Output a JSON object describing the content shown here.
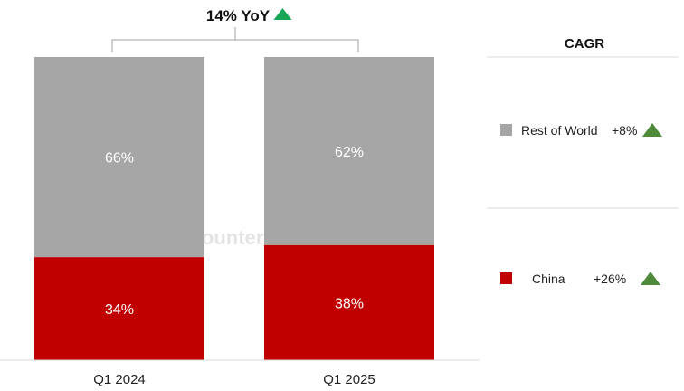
{
  "headline": {
    "label": "14% YoY",
    "direction": "up",
    "arrow_color": "#1aa657"
  },
  "watermark": "Counterpoint",
  "cagr_table": {
    "header": "CAGR",
    "rows": [
      {
        "series": "Rest of World",
        "value": "+8%",
        "direction": "up",
        "arrow_color": "#4e8a3a"
      },
      {
        "series": "China",
        "value": "+26%",
        "direction": "up",
        "arrow_color": "#4e8a3a"
      }
    ]
  },
  "chart_data": {
    "type": "bar",
    "stacked": true,
    "percent_stacked": true,
    "categories": [
      "Q1 2024",
      "Q1 2025"
    ],
    "series": [
      {
        "name": "China",
        "values": [
          34,
          38
        ],
        "labels": [
          "34%",
          "38%"
        ],
        "color": "#c00000"
      },
      {
        "name": "Rest of World",
        "values": [
          66,
          62
        ],
        "labels": [
          "66%",
          "62%"
        ],
        "color": "#a6a6a6"
      }
    ],
    "ylim": [
      0,
      100
    ],
    "grid": false,
    "legend_position": "right"
  }
}
